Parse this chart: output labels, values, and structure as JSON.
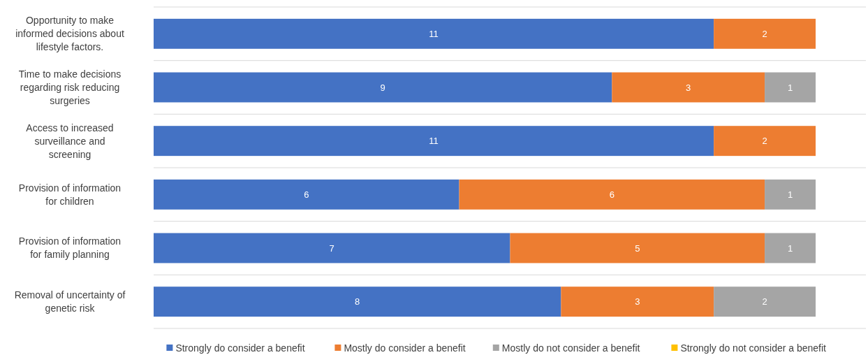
{
  "chart_data": {
    "type": "bar",
    "orientation": "horizontal",
    "stacked": true,
    "data_labels": true,
    "grid": "y",
    "legend": "bottom",
    "categories": [
      "Opportunity to make informed decisions about lifestyle factors.",
      "Time to make decisions regarding risk reducing surgeries",
      "Access to increased surveillance and screening",
      "Provision of information for children",
      "Provision of information for family planning",
      "Removal of uncertainty of genetic risk"
    ],
    "series": [
      {
        "name": "Strongly do consider a benefit",
        "color": "#4472c4",
        "values": [
          11,
          9,
          11,
          6,
          7,
          8
        ]
      },
      {
        "name": "Mostly do consider a benefit",
        "color": "#ed7d31",
        "values": [
          2,
          3,
          2,
          6,
          5,
          3
        ]
      },
      {
        "name": "Mostly do not consider a benefit",
        "color": "#a5a5a5",
        "values": [
          null,
          1,
          null,
          1,
          1,
          2
        ]
      },
      {
        "name": "Strongly do not consider a benefit",
        "color": "#ffc000",
        "values": [
          null,
          null,
          null,
          null,
          null,
          null
        ]
      }
    ]
  }
}
